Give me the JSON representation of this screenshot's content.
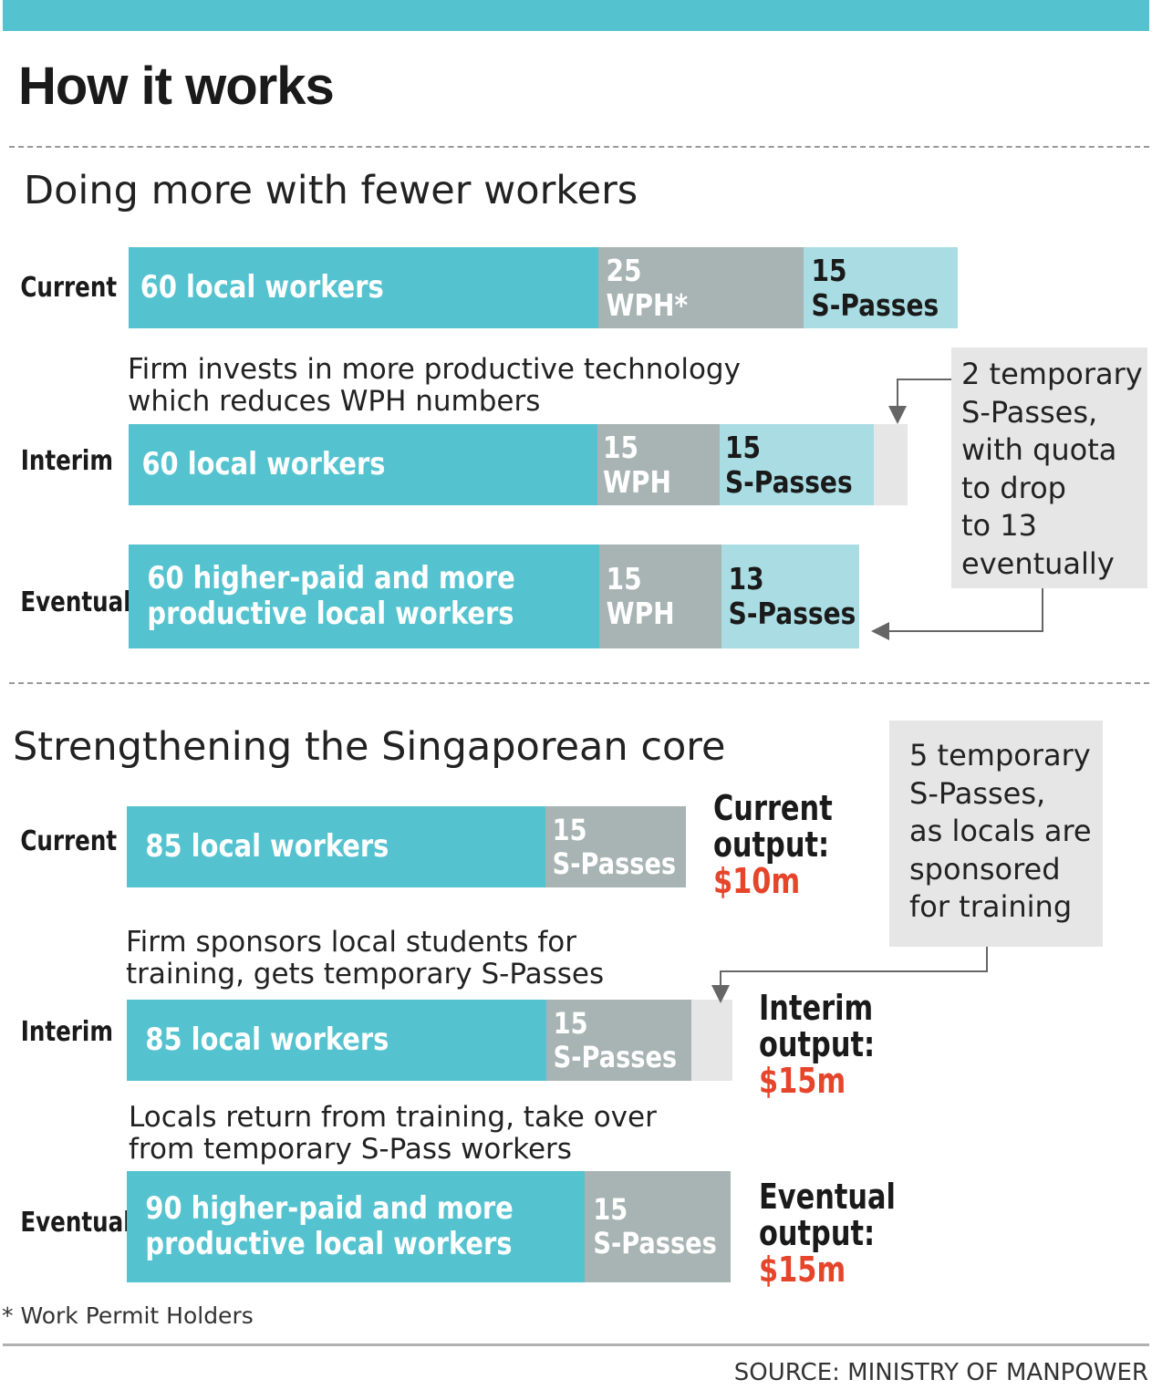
{
  "title": "How it works",
  "chart_data": {
    "type": "bar",
    "orientation": "horizontal",
    "stacked": true,
    "panels": [
      {
        "title": "Doing more with fewer workers",
        "rows": [
          {
            "label": "Current",
            "segments": [
              {
                "value": 60,
                "text": "60 local workers",
                "category": "local"
              },
              {
                "value": 25,
                "text": "25\nWPH*",
                "category": "wph"
              },
              {
                "value": 15,
                "text": "15\nS-Passes",
                "category": "spass"
              }
            ]
          },
          {
            "label": "Interim",
            "note": "Firm invests in more productive technology\nwhich reduces WPH numbers",
            "segments": [
              {
                "value": 60,
                "text": "60 local workers",
                "category": "local"
              },
              {
                "value": 15,
                "text": "15\nWPH",
                "category": "wph"
              },
              {
                "value": 15,
                "text": "15\nS-Passes",
                "category": "spass"
              },
              {
                "value": 2,
                "text": "",
                "category": "temporary"
              }
            ]
          },
          {
            "label": "Eventual",
            "segments": [
              {
                "value": 60,
                "text": "60 higher-paid and more\nproductive local workers",
                "category": "local"
              },
              {
                "value": 15,
                "text": "15\nWPH",
                "category": "wph"
              },
              {
                "value": 13,
                "text": "13\nS-Passes",
                "category": "spass"
              }
            ]
          }
        ],
        "callout": "2 temporary\nS-Passes,\nwith quota\nto drop\nto 13\neventually"
      },
      {
        "title": "Strengthening the Singaporean core",
        "rows": [
          {
            "label": "Current",
            "output_label": "Current\noutput:",
            "output_value": "$10m",
            "segments": [
              {
                "value": 85,
                "text": "85 local workers",
                "category": "local"
              },
              {
                "value": 15,
                "text": "15\nS-Passes",
                "category": "spass"
              }
            ]
          },
          {
            "label": "Interim",
            "note": "Firm sponsors local students for\ntraining, gets temporary S-Passes",
            "output_label": "Interim\noutput:",
            "output_value": "$15m",
            "segments": [
              {
                "value": 85,
                "text": "85 local workers",
                "category": "local"
              },
              {
                "value": 15,
                "text": "15\nS-Passes",
                "category": "spass"
              },
              {
                "value": 5,
                "text": "",
                "category": "temporary"
              }
            ]
          },
          {
            "label": "Eventual",
            "note": "Locals return from training, take over\nfrom temporary S-Pass workers",
            "output_label": "Eventual\noutput:",
            "output_value": "$15m",
            "segments": [
              {
                "value": 90,
                "text": "90 higher-paid and more\nproductive local workers",
                "category": "local"
              },
              {
                "value": 15,
                "text": "15\nS-Passes",
                "category": "spass"
              }
            ]
          }
        ],
        "callout": "5 temporary\nS-Passes,\nas locals are\nsponsored\nfor training"
      }
    ]
  },
  "colors": {
    "local": "#55c3cf",
    "wph": "#a7b4b3",
    "spass_light": "#a9dde3",
    "spass_grey": "#a7b4b3",
    "temporary": "#e6e6e6",
    "output_value": "#e5452b",
    "top_bar": "#55c3cf"
  },
  "footnote": "* Work Permit Holders",
  "source": "SOURCE: MINISTRY OF MANPOWER"
}
